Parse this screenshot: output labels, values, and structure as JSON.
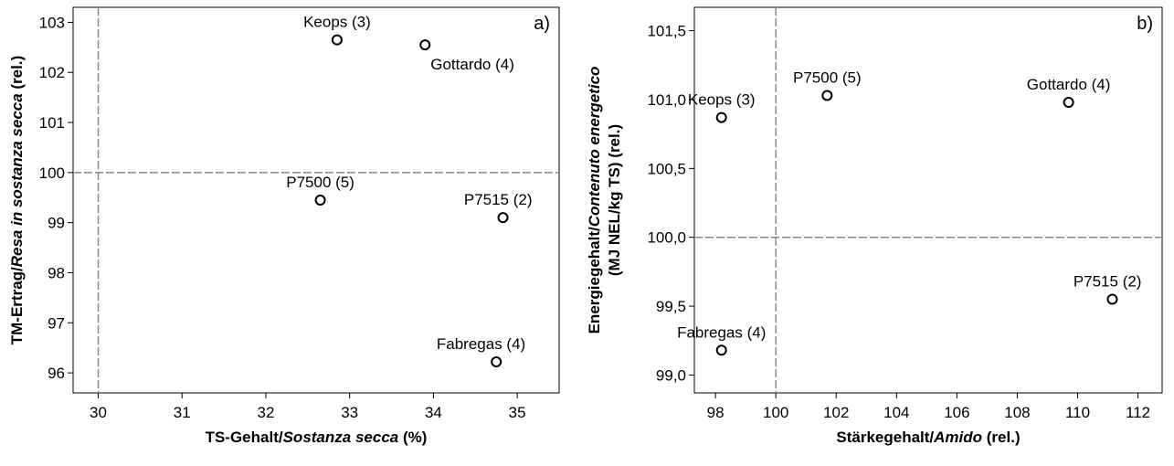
{
  "chart_data": [
    {
      "type": "scatter",
      "panel_label": "a)",
      "xlabel": {
        "main": "TS-Gehalt/",
        "italic": "Sostanza secca",
        "tail": " (%)"
      },
      "ylabel": {
        "main": "TM-Ertrag/",
        "italic": "Resa in sostanza secca",
        "tail": " (rel.)"
      },
      "xlim": [
        29.7,
        35.5
      ],
      "ylim": [
        95.6,
        103.3
      ],
      "xticks": [
        30,
        31,
        32,
        33,
        34,
        35
      ],
      "xtick_labels": [
        "30",
        "31",
        "32",
        "33",
        "34",
        "35"
      ],
      "yticks": [
        96,
        97,
        98,
        99,
        100,
        101,
        102,
        103
      ],
      "ytick_labels": [
        "96",
        "97",
        "98",
        "99",
        "100",
        "101",
        "102",
        "103"
      ],
      "reference_lines": {
        "x": 30,
        "y": 100
      },
      "points": [
        {
          "label": "Keops (3)",
          "x": 32.85,
          "y": 102.65,
          "label_pos": "above"
        },
        {
          "label": "Gottardo (4)",
          "x": 33.9,
          "y": 102.55,
          "label_pos": "below-right"
        },
        {
          "label": "P7500 (5)",
          "x": 32.65,
          "y": 99.45,
          "label_pos": "above"
        },
        {
          "label": "P7515 (2)",
          "x": 34.83,
          "y": 99.1,
          "label_pos": "above-left"
        },
        {
          "label": "Fabregas (4)",
          "x": 34.75,
          "y": 96.22,
          "label_pos": "above-left"
        }
      ]
    },
    {
      "type": "scatter",
      "panel_label": "b)",
      "xlabel": {
        "main": "Stärkegehalt/",
        "italic": "Amido",
        "tail": " (rel.)"
      },
      "ylabel": {
        "main": "Energiegehalt/",
        "italic": "Contenuto energetico",
        "line2": "(MJ NEL/kg TS) (rel.)"
      },
      "xlim": [
        97.3,
        112.8
      ],
      "ylim": [
        98.87,
        101.67
      ],
      "xticks": [
        98,
        100,
        102,
        104,
        106,
        108,
        110,
        112
      ],
      "xtick_labels": [
        "98",
        "100",
        "102",
        "104",
        "106",
        "108",
        "110",
        "112"
      ],
      "yticks": [
        99.0,
        99.5,
        100.0,
        100.5,
        101.0,
        101.5
      ],
      "ytick_labels": [
        "99,0",
        "99,5",
        "100,0",
        "100,5",
        "101,0",
        "101,5"
      ],
      "reference_lines": {
        "x": 100,
        "y": 100
      },
      "points": [
        {
          "label": "Keops (3)",
          "x": 98.2,
          "y": 100.87,
          "label_pos": "above"
        },
        {
          "label": "P7500 (5)",
          "x": 101.7,
          "y": 101.03,
          "label_pos": "above"
        },
        {
          "label": "Gottardo (4)",
          "x": 109.7,
          "y": 100.98,
          "label_pos": "above"
        },
        {
          "label": "P7515 (2)",
          "x": 111.15,
          "y": 99.55,
          "label_pos": "above-left"
        },
        {
          "label": "Fabregas (4)",
          "x": 98.2,
          "y": 99.18,
          "label_pos": "above"
        }
      ]
    }
  ]
}
